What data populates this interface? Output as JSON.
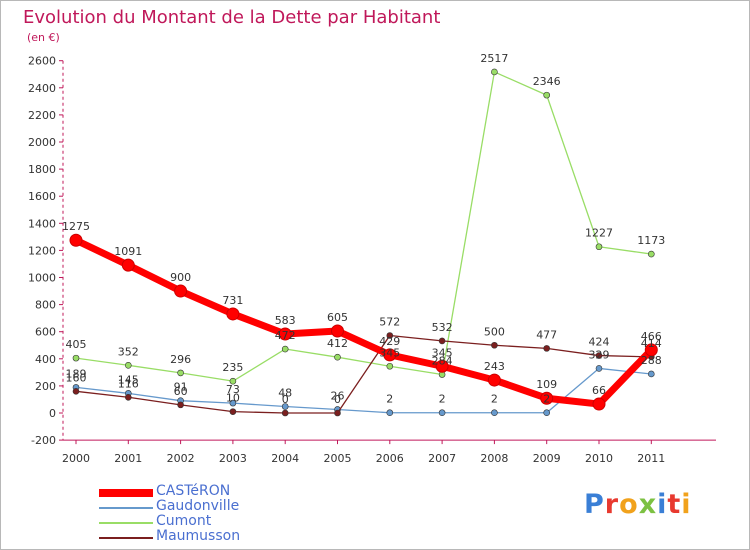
{
  "title": "Evolution du Montant de la Dette par Habitant",
  "subtitle": "(en €)",
  "logo": "Proxiti",
  "chart_data": {
    "type": "line",
    "x": [
      "2000",
      "2001",
      "2002",
      "2003",
      "2004",
      "2005",
      "2006",
      "2007",
      "2008",
      "2009",
      "2010",
      "2011"
    ],
    "ylim": [
      -200,
      2600
    ],
    "yticks": [
      -200,
      0,
      200,
      400,
      600,
      800,
      1000,
      1200,
      1400,
      1600,
      1800,
      2000,
      2200,
      2400,
      2600
    ],
    "grid": false,
    "legend_position": "bottom-left",
    "series": [
      {
        "name": "CASTéRON",
        "color": "#ff0000",
        "values": [
          1275,
          1091,
          900,
          731,
          583,
          605,
          429,
          345,
          243,
          109,
          66,
          466
        ]
      },
      {
        "name": "Gaudonville",
        "color": "#6699cc",
        "values": [
          189,
          145,
          91,
          73,
          48,
          26,
          2,
          2,
          2,
          2,
          329,
          288
        ]
      },
      {
        "name": "Cumont",
        "color": "#99dd66",
        "values": [
          405,
          352,
          296,
          235,
          472,
          412,
          345,
          284,
          2517,
          2346,
          1227,
          1173
        ]
      },
      {
        "name": "Maumusson",
        "color": "#7b1f1f",
        "values": [
          160,
          116,
          60,
          10,
          0,
          0,
          572,
          532,
          500,
          477,
          424,
          414
        ]
      }
    ]
  }
}
